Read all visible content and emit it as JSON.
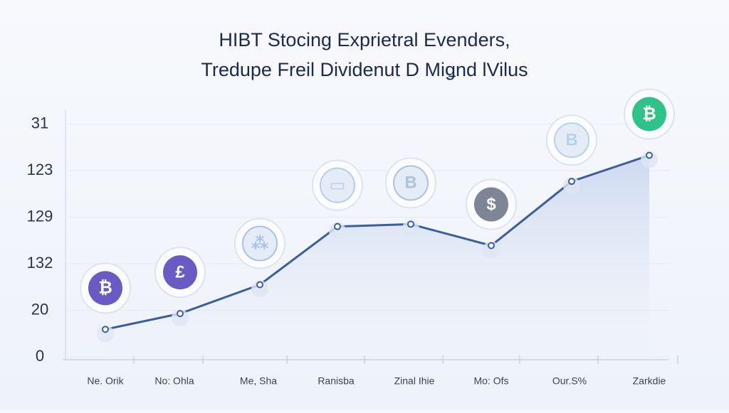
{
  "chart_data": {
    "type": "line",
    "title": [
      "HIBT Stocing Exprietral Evenders,",
      "Tredupe Freil Dividenut D Miǥnd lVilus"
    ],
    "categories": [
      "Ne. Orik",
      "No: Ohla",
      "Me, Sha",
      "Ranisba",
      "Zinal Ihie",
      "Mo: Ofs",
      "Our.S%",
      "Zarkdie"
    ],
    "series": [
      {
        "color": "#3b5f9e",
        "values": [
          0.59,
          0.93,
          1.55,
          2.8,
          2.85,
          2.39,
          3.77,
          4.33
        ]
      }
    ],
    "ylim": [
      0,
      5.3
    ],
    "yticks": [
      0,
      {
        "value": 1,
        "label": "20"
      },
      {
        "value": 2,
        "label": "132"
      },
      {
        "value": 3,
        "label": "129"
      },
      {
        "value": 4,
        "label": "123"
      },
      {
        "value": 5,
        "label": "31"
      }
    ],
    "grid": true,
    "icons": [
      "₿",
      "£",
      "⁂",
      "▭",
      "B",
      "$",
      "B",
      "₿"
    ]
  }
}
